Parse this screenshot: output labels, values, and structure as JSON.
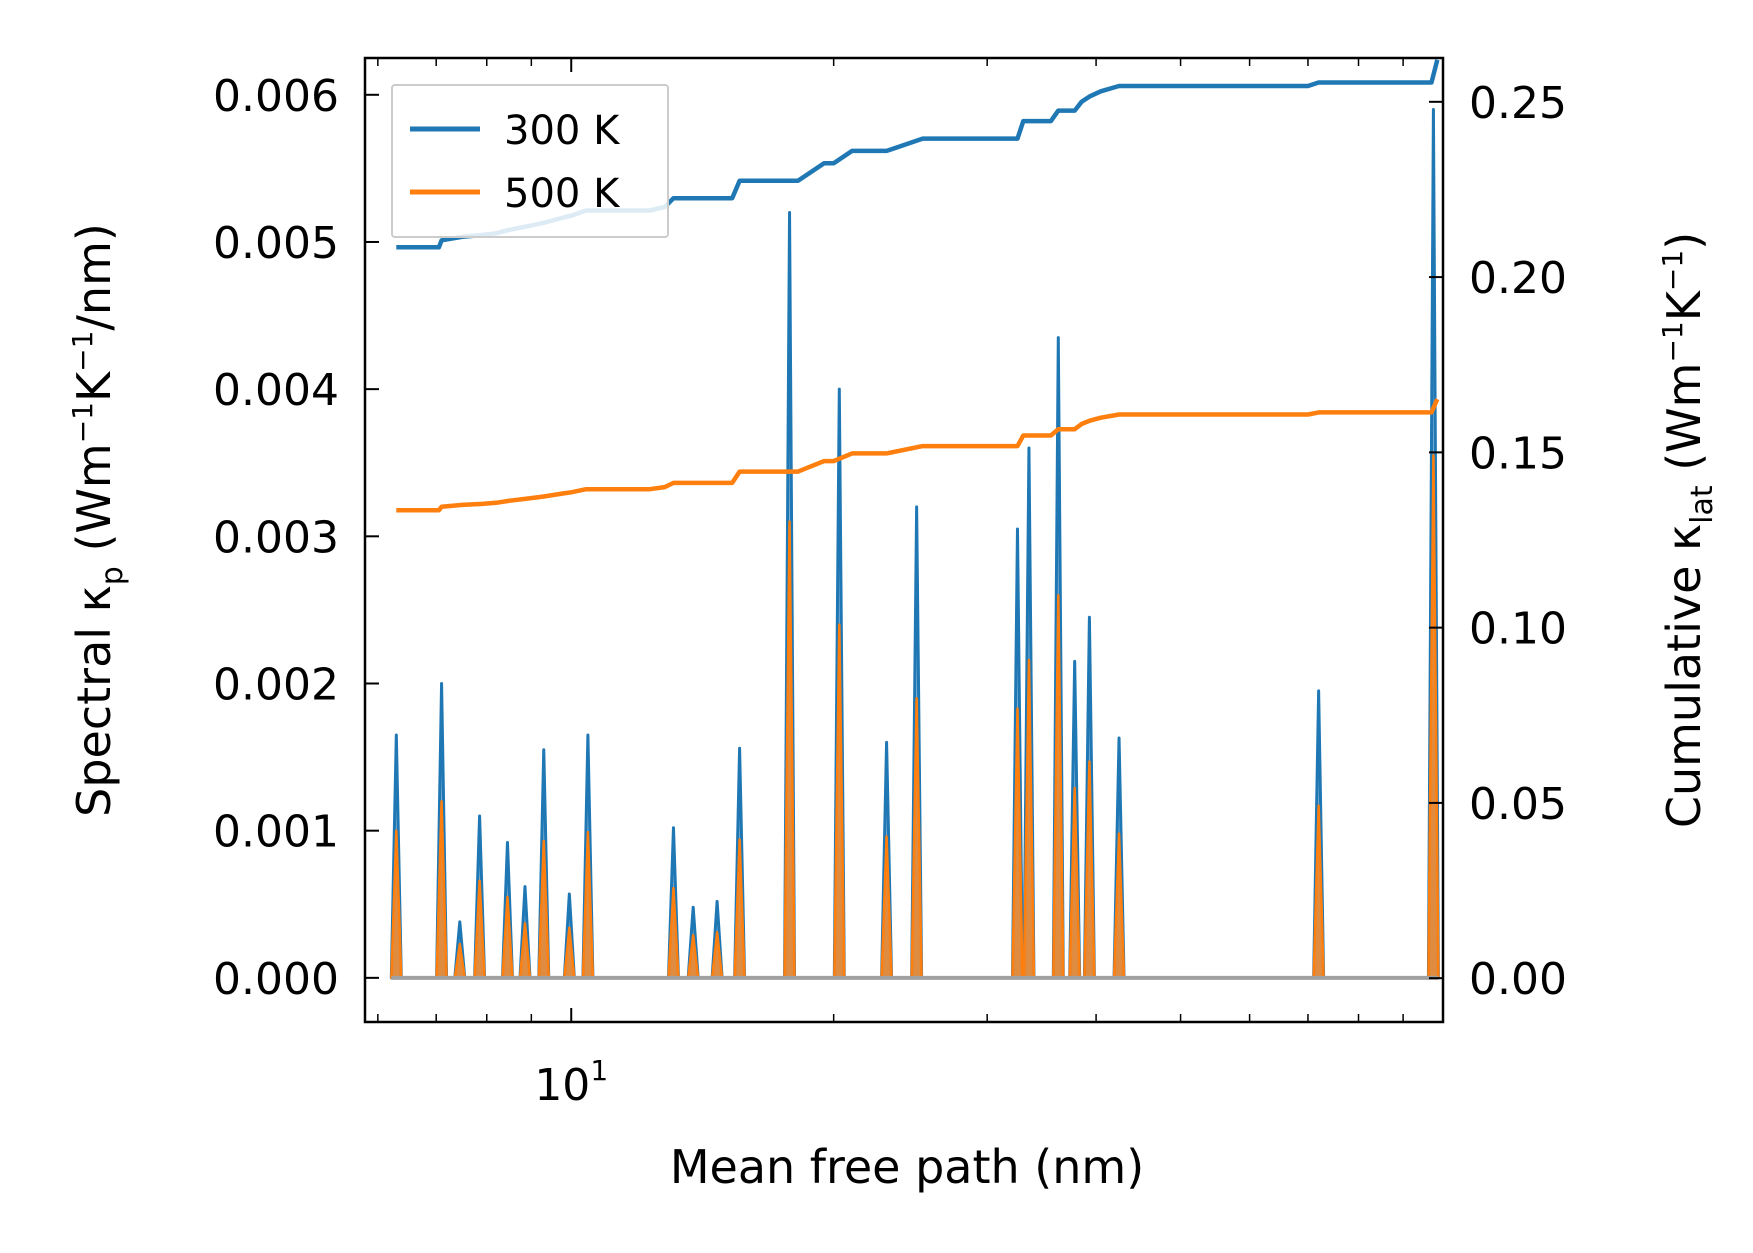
{
  "chart_data": {
    "type": "line",
    "x_scale": "log",
    "xlabel": "Mean free path (nm)",
    "ylabel_left": {
      "prefix": "Spectral κ",
      "sub": "p",
      "open": " (Wm",
      "sup1": "−1",
      "mid": "K",
      "sup2": "−1",
      "close": "/nm)"
    },
    "ylabel_right": {
      "prefix": "Cumulative κ",
      "sub": "lat",
      "open": " (Wm",
      "sup1": "−1",
      "mid": "K",
      "sup2": "−1",
      "close": ")"
    },
    "xlim": [
      5.8,
      100
    ],
    "ylim_left": [
      -0.0003,
      0.00625
    ],
    "ylim_right": [
      -0.0125,
      0.2625
    ],
    "x_ticks": [
      {
        "value": 10,
        "base": "10",
        "exp": "1"
      }
    ],
    "y_ticks_left": [
      {
        "value": 0.0,
        "label": "0.000"
      },
      {
        "value": 0.001,
        "label": "0.001"
      },
      {
        "value": 0.002,
        "label": "0.002"
      },
      {
        "value": 0.003,
        "label": "0.003"
      },
      {
        "value": 0.004,
        "label": "0.004"
      },
      {
        "value": 0.005,
        "label": "0.005"
      },
      {
        "value": 0.006,
        "label": "0.006"
      }
    ],
    "y_ticks_right": [
      {
        "value": 0.0,
        "label": "0.00"
      },
      {
        "value": 0.05,
        "label": "0.05"
      },
      {
        "value": 0.1,
        "label": "0.10"
      },
      {
        "value": 0.15,
        "label": "0.15"
      },
      {
        "value": 0.2,
        "label": "0.20"
      },
      {
        "value": 0.25,
        "label": "0.25"
      }
    ],
    "legend": {
      "position": "upper-left",
      "entries": [
        {
          "label": "300 K",
          "color": "#1f77b4"
        },
        {
          "label": "500 K",
          "color": "#ff7f0e"
        }
      ]
    },
    "spectral_peaks": {
      "x": [
        6.3,
        7.1,
        7.45,
        7.85,
        8.45,
        8.85,
        9.3,
        9.95,
        10.45,
        13.1,
        13.8,
        14.7,
        15.6,
        17.8,
        20.3,
        23.0,
        24.9,
        32.5,
        33.5,
        36.2,
        37.8,
        39.3,
        42.5,
        72.0,
        97.5
      ],
      "k300": [
        0.00165,
        0.002,
        0.00038,
        0.0011,
        0.00092,
        0.00062,
        0.00155,
        0.00057,
        0.00165,
        0.00102,
        0.00048,
        0.00052,
        0.00156,
        0.0052,
        0.004,
        0.0016,
        0.0032,
        0.00305,
        0.0036,
        0.00435,
        0.00215,
        0.00245,
        0.00163,
        0.00195,
        0.0059
      ],
      "k500": [
        0.001,
        0.0012,
        0.00023,
        0.00066,
        0.00055,
        0.00037,
        0.00093,
        0.00034,
        0.00099,
        0.00061,
        0.00029,
        0.00031,
        0.00094,
        0.0031,
        0.0024,
        0.00096,
        0.0019,
        0.00183,
        0.00216,
        0.0026,
        0.00129,
        0.00147,
        0.00098,
        0.00117,
        0.00355
      ]
    },
    "cumulative": {
      "k300": {
        "x": [
          6.3,
          7.05,
          7.1,
          7.5,
          7.9,
          8.2,
          8.5,
          8.9,
          9.3,
          9.8,
          10.0,
          10.4,
          11.3,
          12.3,
          12.8,
          13.1,
          15.3,
          15.6,
          18.2,
          19.5,
          20.0,
          21.0,
          23.0,
          25.3,
          29.5,
          32.5,
          33.0,
          35.5,
          36.2,
          37.8,
          38.5,
          39.3,
          40.5,
          42.5,
          70.0,
          72.0,
          97.0,
          98.5
        ],
        "y": [
          0.2085,
          0.2085,
          0.2105,
          0.2115,
          0.212,
          0.2125,
          0.2135,
          0.2145,
          0.2155,
          0.217,
          0.2175,
          0.219,
          0.219,
          0.219,
          0.22,
          0.2225,
          0.2225,
          0.2275,
          0.2275,
          0.2325,
          0.2325,
          0.236,
          0.236,
          0.2395,
          0.2395,
          0.2395,
          0.2445,
          0.2445,
          0.2475,
          0.2475,
          0.25,
          0.2515,
          0.253,
          0.2545,
          0.2545,
          0.2555,
          0.2555,
          0.262
        ]
      },
      "k500": {
        "x": [
          6.3,
          7.05,
          7.1,
          7.5,
          7.9,
          8.2,
          8.5,
          8.9,
          9.3,
          9.8,
          10.0,
          10.4,
          11.3,
          12.3,
          12.8,
          13.1,
          15.3,
          15.6,
          18.2,
          19.5,
          20.0,
          21.0,
          23.0,
          25.3,
          29.5,
          32.5,
          33.0,
          35.5,
          36.2,
          37.8,
          38.5,
          39.3,
          40.5,
          42.5,
          70.0,
          72.0,
          97.0,
          98.5
        ],
        "y": [
          0.1335,
          0.1335,
          0.1345,
          0.135,
          0.1353,
          0.1356,
          0.1362,
          0.1368,
          0.1374,
          0.1383,
          0.1386,
          0.1395,
          0.1395,
          0.1395,
          0.1401,
          0.1413,
          0.1413,
          0.1445,
          0.1445,
          0.1475,
          0.1475,
          0.1497,
          0.1497,
          0.1518,
          0.1518,
          0.1518,
          0.1548,
          0.1548,
          0.1566,
          0.1566,
          0.1581,
          0.159,
          0.1599,
          0.1608,
          0.1608,
          0.1614,
          0.1614,
          0.1652
        ]
      }
    }
  }
}
